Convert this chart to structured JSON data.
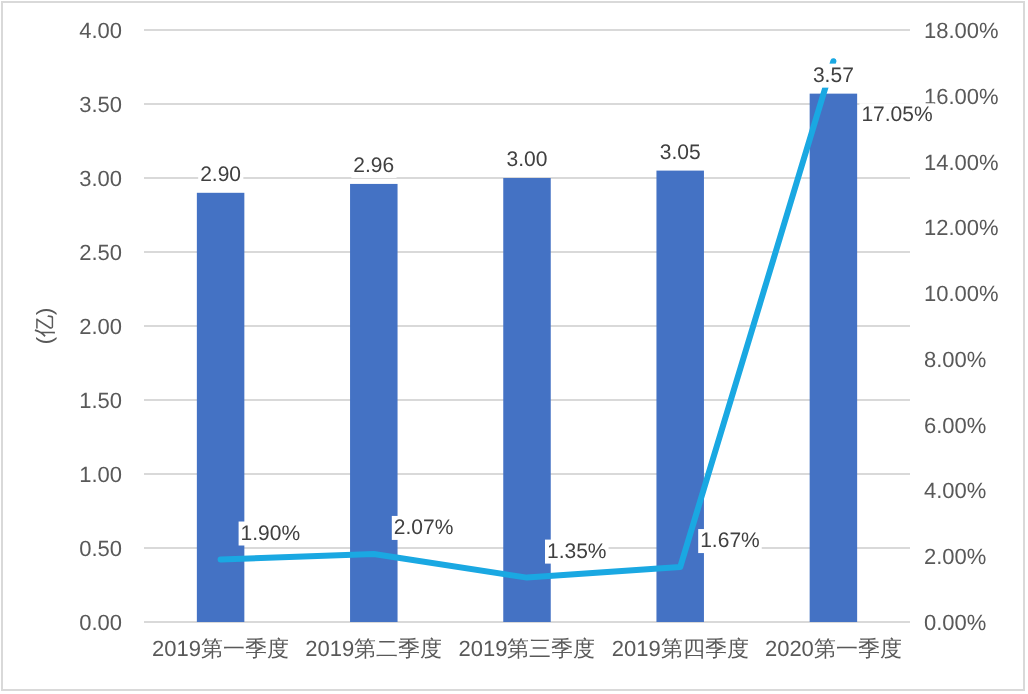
{
  "chart_data": {
    "type": "bar",
    "ylabel": "(亿)",
    "categories": [
      "2019第一季度",
      "2019第二季度",
      "2019第三季度",
      "2019第四季度",
      "2020第一季度"
    ],
    "series": [
      {
        "color": "#4472c4",
        "values": [
          2.9,
          2.96,
          3.0,
          3.05,
          3.57
        ],
        "value_labels": [
          "2.90",
          "2.96",
          "3.00",
          "3.05",
          "3.57"
        ]
      },
      {
        "type": "line",
        "axis": "y2",
        "color": "#1aa8e2",
        "values": [
          1.9,
          2.07,
          1.35,
          1.67,
          17.05
        ],
        "value_labels": [
          "1.90%",
          "2.07%",
          "1.35%",
          "1.67%",
          "17.05%"
        ]
      }
    ],
    "ylim": [
      0,
      4
    ],
    "yticks": [
      {
        "value": 0,
        "label": "0.00"
      },
      {
        "value": 0.5,
        "label": "0.50"
      },
      {
        "value": 1,
        "label": "1.00"
      },
      {
        "value": 1.5,
        "label": "1.50"
      },
      {
        "value": 2,
        "label": "2.00"
      },
      {
        "value": 2.5,
        "label": "2.50"
      },
      {
        "value": 3,
        "label": "3.00"
      },
      {
        "value": 3.5,
        "label": "3.50"
      },
      {
        "value": 4,
        "label": "4.00"
      }
    ],
    "y2lim": [
      0,
      18
    ],
    "y2ticks": [
      {
        "value": 0,
        "label": "0.00%"
      },
      {
        "value": 2,
        "label": "2.00%"
      },
      {
        "value": 4,
        "label": "4.00%"
      },
      {
        "value": 6,
        "label": "6.00%"
      },
      {
        "value": 8,
        "label": "8.00%"
      },
      {
        "value": 10,
        "label": "10.00%"
      },
      {
        "value": 12,
        "label": "12.00%"
      },
      {
        "value": 14,
        "label": "14.00%"
      },
      {
        "value": 16,
        "label": "16.00%"
      },
      {
        "value": 18,
        "label": "18.00%"
      }
    ],
    "grid": "y"
  }
}
